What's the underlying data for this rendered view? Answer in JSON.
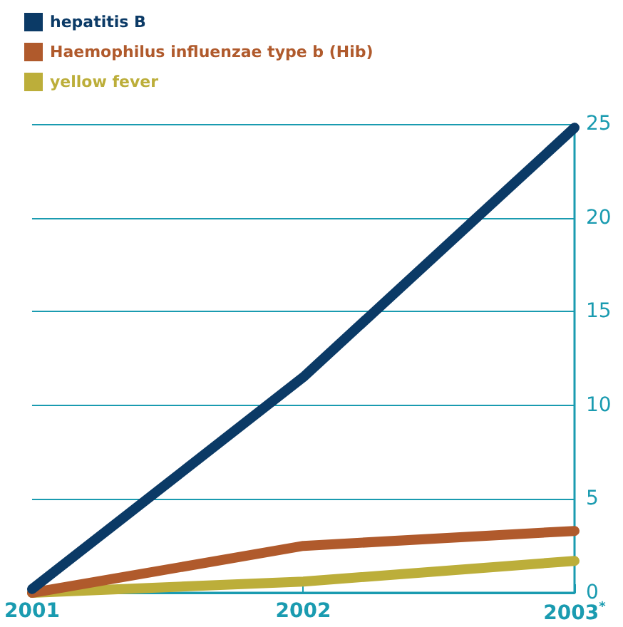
{
  "chart_data": {
    "type": "line",
    "categories": [
      "2001",
      "2002",
      "2003$^{*}$"
    ],
    "series": [
      {
        "name": "hepatitis B",
        "color": "#0b3a66",
        "values": [
          0.2,
          11.5,
          24.8
        ]
      },
      {
        "name": "Haemophilus influenzae type b (Hib)",
        "color": "#b05a2c",
        "values": [
          0,
          2.5,
          3.3
        ]
      },
      {
        "name": "yellow fever",
        "color": "#bcae3a",
        "values": [
          0,
          0.6,
          1.7
        ]
      }
    ],
    "ylim": [
      0,
      25
    ],
    "yticks": [
      0,
      5,
      10,
      15,
      20,
      25
    ],
    "grid": "y",
    "legend": "top left",
    "marker": "none",
    "line_style": "solid"
  }
}
